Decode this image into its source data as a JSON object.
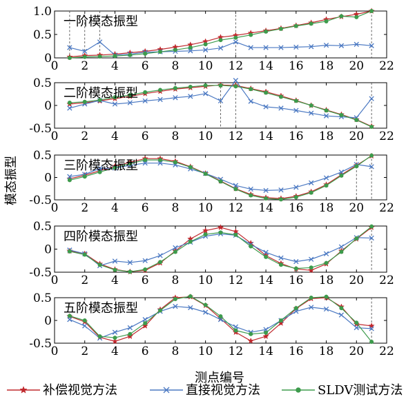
{
  "chart_data": [
    {
      "type": "line",
      "title": "一阶模态振型",
      "ylim": [
        0,
        1
      ],
      "yticks": [
        "0",
        "0.5",
        "1.0"
      ],
      "vlines": [
        1,
        2,
        3,
        12,
        21
      ],
      "series": [
        {
          "name": "补偿视觉方法",
          "color": "#c0282d",
          "marker": "star",
          "x": [
            1,
            2,
            3,
            4,
            5,
            6,
            7,
            8,
            9,
            10,
            11,
            12,
            13,
            14,
            15,
            16,
            17,
            18,
            19,
            20,
            21
          ],
          "y": [
            0.02,
            0.05,
            0.06,
            0.08,
            0.11,
            0.14,
            0.18,
            0.23,
            0.28,
            0.35,
            0.44,
            0.48,
            0.53,
            0.58,
            0.63,
            0.69,
            0.75,
            0.82,
            0.88,
            0.93,
            1.0
          ]
        },
        {
          "name": "直接视觉方法",
          "color": "#4a78c2",
          "marker": "x",
          "x": [
            1,
            2,
            3,
            4,
            5,
            6,
            7,
            8,
            9,
            10,
            11,
            12,
            13,
            14,
            15,
            16,
            17,
            18,
            19,
            20,
            21
          ],
          "y": [
            0.22,
            0.14,
            0.34,
            0.06,
            0.08,
            0.12,
            0.13,
            0.14,
            0.15,
            0.17,
            0.21,
            0.34,
            0.22,
            0.22,
            0.22,
            0.23,
            0.24,
            0.27,
            0.26,
            0.29,
            0.26
          ]
        },
        {
          "name": "SLDV测试方法",
          "color": "#3d9b4c",
          "marker": "dot",
          "x": [
            1,
            2,
            3,
            4,
            5,
            6,
            7,
            8,
            9,
            10,
            11,
            12,
            13,
            14,
            15,
            16,
            17,
            18,
            19,
            20,
            21
          ],
          "y": [
            0.0,
            0.02,
            0.03,
            0.04,
            0.06,
            0.09,
            0.13,
            0.17,
            0.22,
            0.29,
            0.38,
            0.43,
            0.49,
            0.56,
            0.62,
            0.68,
            0.73,
            0.78,
            0.89,
            0.87,
            1.0
          ]
        }
      ]
    },
    {
      "type": "line",
      "title": "二阶模态振型",
      "ylim": [
        -0.5,
        0.5
      ],
      "yticks": [
        "-0.5",
        "0",
        "0.5"
      ],
      "vlines": [
        11,
        12,
        21
      ],
      "series": [
        {
          "name": "补偿视觉方法",
          "color": "#c0282d",
          "marker": "star",
          "x": [
            1,
            2,
            3,
            4,
            5,
            6,
            7,
            8,
            9,
            10,
            11,
            12,
            13,
            14,
            15,
            16,
            17,
            18,
            19,
            20,
            21
          ],
          "y": [
            0.03,
            0.06,
            0.1,
            0.15,
            0.2,
            0.26,
            0.31,
            0.36,
            0.39,
            0.42,
            0.45,
            0.44,
            0.37,
            0.3,
            0.21,
            0.11,
            0.0,
            -0.1,
            -0.2,
            -0.31,
            -0.46
          ]
        },
        {
          "name": "直接视觉方法",
          "color": "#4a78c2",
          "marker": "x",
          "x": [
            1,
            2,
            3,
            4,
            5,
            6,
            7,
            8,
            9,
            10,
            11,
            12,
            13,
            14,
            15,
            16,
            17,
            18,
            19,
            20,
            21
          ],
          "y": [
            -0.06,
            0.03,
            0.11,
            0.03,
            0.06,
            0.1,
            0.13,
            0.17,
            0.2,
            0.26,
            0.1,
            0.55,
            0.09,
            -0.03,
            -0.06,
            -0.11,
            -0.17,
            -0.23,
            -0.25,
            -0.27,
            0.15
          ]
        },
        {
          "name": "SLDV测试方法",
          "color": "#3d9b4c",
          "marker": "dot",
          "x": [
            1,
            2,
            3,
            4,
            5,
            6,
            7,
            8,
            9,
            10,
            11,
            12,
            13,
            14,
            15,
            16,
            17,
            18,
            19,
            20,
            21
          ],
          "y": [
            0.06,
            0.08,
            0.12,
            0.18,
            0.23,
            0.29,
            0.34,
            0.38,
            0.41,
            0.44,
            0.44,
            0.42,
            0.36,
            0.28,
            0.19,
            0.1,
            0.0,
            -0.11,
            -0.21,
            -0.32,
            -0.47
          ]
        }
      ]
    },
    {
      "type": "line",
      "title": "三阶模态振型",
      "ylim": [
        -0.5,
        0.5
      ],
      "yticks": [
        "-0.5",
        "0",
        "0.5"
      ],
      "vlines": [
        20,
        21
      ],
      "series": [
        {
          "name": "补偿视觉方法",
          "color": "#c0282d",
          "marker": "star",
          "x": [
            1,
            2,
            3,
            4,
            5,
            6,
            7,
            8,
            9,
            10,
            11,
            12,
            13,
            14,
            15,
            16,
            17,
            18,
            19,
            20,
            21
          ],
          "y": [
            -0.03,
            0.05,
            0.15,
            0.25,
            0.34,
            0.42,
            0.42,
            0.36,
            0.24,
            0.09,
            -0.08,
            -0.25,
            -0.38,
            -0.45,
            -0.47,
            -0.42,
            -0.32,
            -0.16,
            0.06,
            0.27,
            0.48
          ]
        },
        {
          "name": "直接视觉方法",
          "color": "#4a78c2",
          "marker": "x",
          "x": [
            1,
            2,
            3,
            4,
            5,
            6,
            7,
            8,
            9,
            10,
            11,
            12,
            13,
            14,
            15,
            16,
            17,
            18,
            19,
            20,
            21
          ],
          "y": [
            0.02,
            0.07,
            0.2,
            0.21,
            0.27,
            0.32,
            0.32,
            0.28,
            0.19,
            0.09,
            -0.04,
            -0.18,
            -0.26,
            -0.29,
            -0.28,
            -0.22,
            -0.12,
            -0.01,
            0.12,
            0.29,
            0.24
          ]
        },
        {
          "name": "SLDV测试方法",
          "color": "#3d9b4c",
          "marker": "dot",
          "x": [
            1,
            2,
            3,
            4,
            5,
            6,
            7,
            8,
            9,
            10,
            11,
            12,
            13,
            14,
            15,
            16,
            17,
            18,
            19,
            20,
            21
          ],
          "y": [
            -0.06,
            0.02,
            0.12,
            0.22,
            0.31,
            0.39,
            0.39,
            0.34,
            0.23,
            0.08,
            -0.09,
            -0.26,
            -0.4,
            -0.47,
            -0.49,
            -0.44,
            -0.34,
            -0.18,
            0.04,
            0.25,
            0.49
          ]
        }
      ]
    },
    {
      "type": "line",
      "title": "四阶模态振型",
      "ylim": [
        -0.5,
        0.5
      ],
      "yticks": [
        "-0.5",
        "0",
        "0.5"
      ],
      "vlines": [
        21
      ],
      "series": [
        {
          "name": "补偿视觉方法",
          "color": "#c0282d",
          "marker": "star",
          "x": [
            1,
            2,
            3,
            4,
            5,
            6,
            7,
            8,
            9,
            10,
            11,
            12,
            13,
            14,
            15,
            16,
            17,
            18,
            19,
            20,
            21
          ],
          "y": [
            -0.04,
            -0.1,
            -0.32,
            -0.44,
            -0.49,
            -0.46,
            -0.3,
            -0.04,
            0.22,
            0.4,
            0.47,
            0.38,
            0.13,
            -0.14,
            -0.31,
            -0.43,
            -0.46,
            -0.32,
            -0.04,
            0.22,
            0.47
          ]
        },
        {
          "name": "直接视觉方法",
          "color": "#4a78c2",
          "marker": "x",
          "x": [
            1,
            2,
            3,
            4,
            5,
            6,
            7,
            8,
            9,
            10,
            11,
            12,
            13,
            14,
            15,
            16,
            17,
            18,
            19,
            20,
            21
          ],
          "y": [
            -0.02,
            -0.1,
            -0.36,
            -0.26,
            -0.29,
            -0.25,
            -0.14,
            0.03,
            0.15,
            0.28,
            0.33,
            0.3,
            0.1,
            -0.07,
            -0.19,
            -0.27,
            -0.22,
            -0.1,
            0.05,
            0.25,
            0.24
          ]
        },
        {
          "name": "SLDV测试方法",
          "color": "#3d9b4c",
          "marker": "dot",
          "x": [
            1,
            2,
            3,
            4,
            5,
            6,
            7,
            8,
            9,
            10,
            11,
            12,
            13,
            14,
            15,
            16,
            17,
            18,
            19,
            20,
            21
          ],
          "y": [
            -0.05,
            -0.12,
            -0.34,
            -0.45,
            -0.49,
            -0.44,
            -0.28,
            -0.06,
            0.16,
            0.32,
            0.36,
            0.31,
            0.06,
            -0.17,
            -0.34,
            -0.42,
            -0.4,
            -0.3,
            -0.06,
            0.23,
            0.49
          ]
        }
      ]
    },
    {
      "type": "line",
      "title": "五阶模态振型",
      "ylim": [
        -0.5,
        0.5
      ],
      "yticks": [
        "-0.5",
        "0",
        "0.5"
      ],
      "vlines": [
        21
      ],
      "series": [
        {
          "name": "补偿视觉方法",
          "color": "#c0282d",
          "marker": "star",
          "x": [
            1,
            2,
            3,
            4,
            5,
            6,
            7,
            8,
            9,
            10,
            11,
            12,
            13,
            14,
            15,
            16,
            17,
            18,
            19,
            20,
            21
          ],
          "y": [
            0.09,
            -0.03,
            -0.37,
            -0.46,
            -0.35,
            -0.12,
            0.24,
            0.5,
            0.52,
            0.33,
            0.04,
            -0.26,
            -0.45,
            -0.35,
            -0.06,
            0.26,
            0.48,
            0.5,
            0.3,
            -0.08,
            -0.12
          ]
        },
        {
          "name": "直接视觉方法",
          "color": "#4a78c2",
          "marker": "x",
          "x": [
            1,
            2,
            3,
            4,
            5,
            6,
            7,
            8,
            9,
            10,
            11,
            12,
            13,
            14,
            15,
            16,
            17,
            18,
            19,
            20,
            21
          ],
          "y": [
            0.02,
            -0.12,
            -0.39,
            -0.26,
            -0.16,
            0.02,
            0.2,
            0.31,
            0.28,
            0.18,
            0.02,
            -0.14,
            -0.26,
            -0.2,
            0.0,
            0.2,
            0.29,
            0.25,
            0.12,
            -0.16,
            -0.18
          ]
        },
        {
          "name": "SLDV测试方法",
          "color": "#3d9b4c",
          "marker": "dot",
          "x": [
            1,
            2,
            3,
            4,
            5,
            6,
            7,
            8,
            9,
            10,
            11,
            12,
            13,
            14,
            15,
            16,
            17,
            18,
            19,
            20,
            21
          ],
          "y": [
            0.1,
            0.0,
            -0.35,
            -0.38,
            -0.3,
            -0.06,
            0.22,
            0.47,
            0.53,
            0.34,
            0.09,
            -0.22,
            -0.3,
            -0.27,
            0.0,
            0.27,
            0.5,
            0.52,
            0.27,
            -0.05,
            -0.47
          ]
        }
      ]
    }
  ],
  "shared_axes": {
    "xlim": [
      0,
      22
    ],
    "xticks": [
      "0",
      "2",
      "4",
      "6",
      "8",
      "10",
      "12",
      "14",
      "16",
      "18",
      "20",
      "22"
    ],
    "xlabel": "测点编号",
    "ylabel": "模态振型"
  },
  "legend": {
    "position": "bottom",
    "items": [
      {
        "label": "补偿视觉方法",
        "color": "#c0282d",
        "marker": "star"
      },
      {
        "label": "直接视觉方法",
        "color": "#4a78c2",
        "marker": "x"
      },
      {
        "label": "SLDV测试方法",
        "color": "#3d9b4c",
        "marker": "dot"
      }
    ]
  }
}
